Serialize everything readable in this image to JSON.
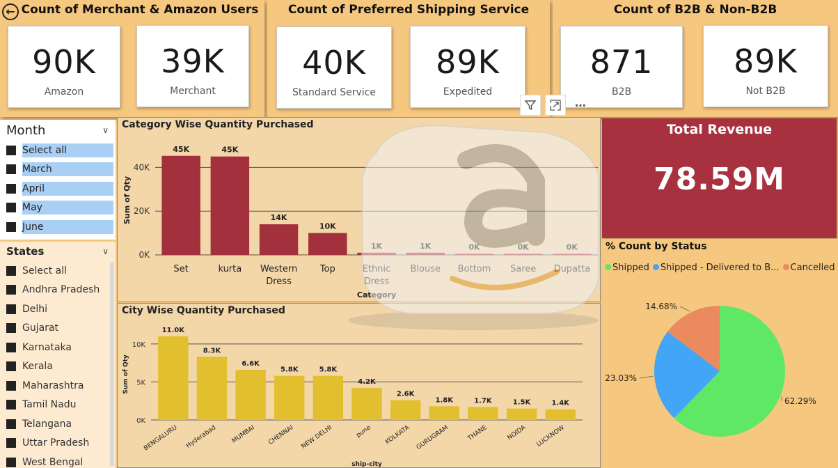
{
  "sections": {
    "users": {
      "title": "Count of Merchant & Amazon Users",
      "cards": [
        {
          "value": "90K",
          "label": "Amazon"
        },
        {
          "value": "39K",
          "label": "Merchant"
        }
      ]
    },
    "shipping": {
      "title": "Count of Preferred Shipping Service",
      "cards": [
        {
          "value": "40K",
          "label": "Standard Service"
        },
        {
          "value": "89K",
          "label": "Expedited"
        }
      ]
    },
    "b2b": {
      "title": "Count of B2B & Non-B2B",
      "cards": [
        {
          "value": "871",
          "label": "B2B"
        },
        {
          "value": "89K",
          "label": "Not B2B"
        }
      ]
    }
  },
  "month_slicer": {
    "title": "Month",
    "items": [
      "Select all",
      "March",
      "April",
      "May",
      "June"
    ]
  },
  "states_slicer": {
    "title": "States",
    "items": [
      "Select all",
      "Andhra Pradesh",
      "Delhi",
      "Gujarat",
      "Karnataka",
      "Kerala",
      "Maharashtra",
      "Tamil Nadu",
      "Telangana",
      "Uttar Pradesh",
      "West Bengal"
    ]
  },
  "revenue": {
    "title": "Total Revenue",
    "value": "78.59M"
  },
  "status": {
    "title": "% Count by Status",
    "legend": [
      {
        "label": "Shipped",
        "color": "#5fe866"
      },
      {
        "label": "Shipped - Delivered to B...",
        "color": "#42a5f5"
      },
      {
        "label": "Cancelled",
        "color": "#ea8a5e"
      }
    ]
  },
  "toolbar": {
    "icons": [
      "filter-icon",
      "focus-mode-icon",
      "more-options-icon"
    ]
  },
  "colors": {
    "bar_red": "#a3313d",
    "bar_yellow": "#e1bf2f",
    "revenue_bg": "#a8313f",
    "page_bg": "#f6c77e"
  },
  "chart_data": [
    {
      "type": "bar",
      "title": "Category Wise Quantity Purchased",
      "xlabel": "Category",
      "ylabel": "Sum of Qty",
      "categories": [
        "Set",
        "kurta",
        "Western Dress",
        "Top",
        "Ethnic Dress",
        "Blouse",
        "Bottom",
        "Saree",
        "Dupatta"
      ],
      "values": [
        45300,
        45000,
        14000,
        10000,
        1000,
        1000,
        0,
        0,
        0
      ],
      "data_labels": [
        "45K",
        "45K",
        "14K",
        "10K",
        "1K",
        "1K",
        "0K",
        "0K",
        "0K"
      ],
      "yticks": [
        "0K",
        "20K",
        "40K"
      ],
      "ylim": [
        0,
        50000
      ],
      "grid": true
    },
    {
      "type": "bar",
      "title": "City Wise Quantity Purchased",
      "xlabel": "ship-city",
      "ylabel": "Sum of Qty",
      "categories": [
        "BENGALURU",
        "Hyderabad",
        "MUMBAI",
        "CHENNAI",
        "NEW DELHI",
        "pune",
        "KOLKATA",
        "GURUGRAM",
        "THANE",
        "NOIDA",
        "LUCKNOW"
      ],
      "values": [
        11000,
        8300,
        6600,
        5800,
        5800,
        4200,
        2600,
        1800,
        1700,
        1500,
        1400
      ],
      "data_labels": [
        "11.0K",
        "8.3K",
        "6.6K",
        "5.8K",
        "5.8K",
        "4.2K",
        "2.6K",
        "1.8K",
        "1.7K",
        "1.5K",
        "1.4K"
      ],
      "yticks": [
        "0K",
        "5K",
        "10K"
      ],
      "ylim": [
        0,
        12000
      ],
      "grid": true
    },
    {
      "type": "pie",
      "title": "% Count by Status",
      "categories": [
        "Shipped",
        "Shipped - Delivered to B...",
        "Cancelled"
      ],
      "values": [
        62.29,
        23.03,
        14.68
      ],
      "data_labels": [
        "62.29%",
        "23.03%",
        "14.68%"
      ]
    }
  ]
}
